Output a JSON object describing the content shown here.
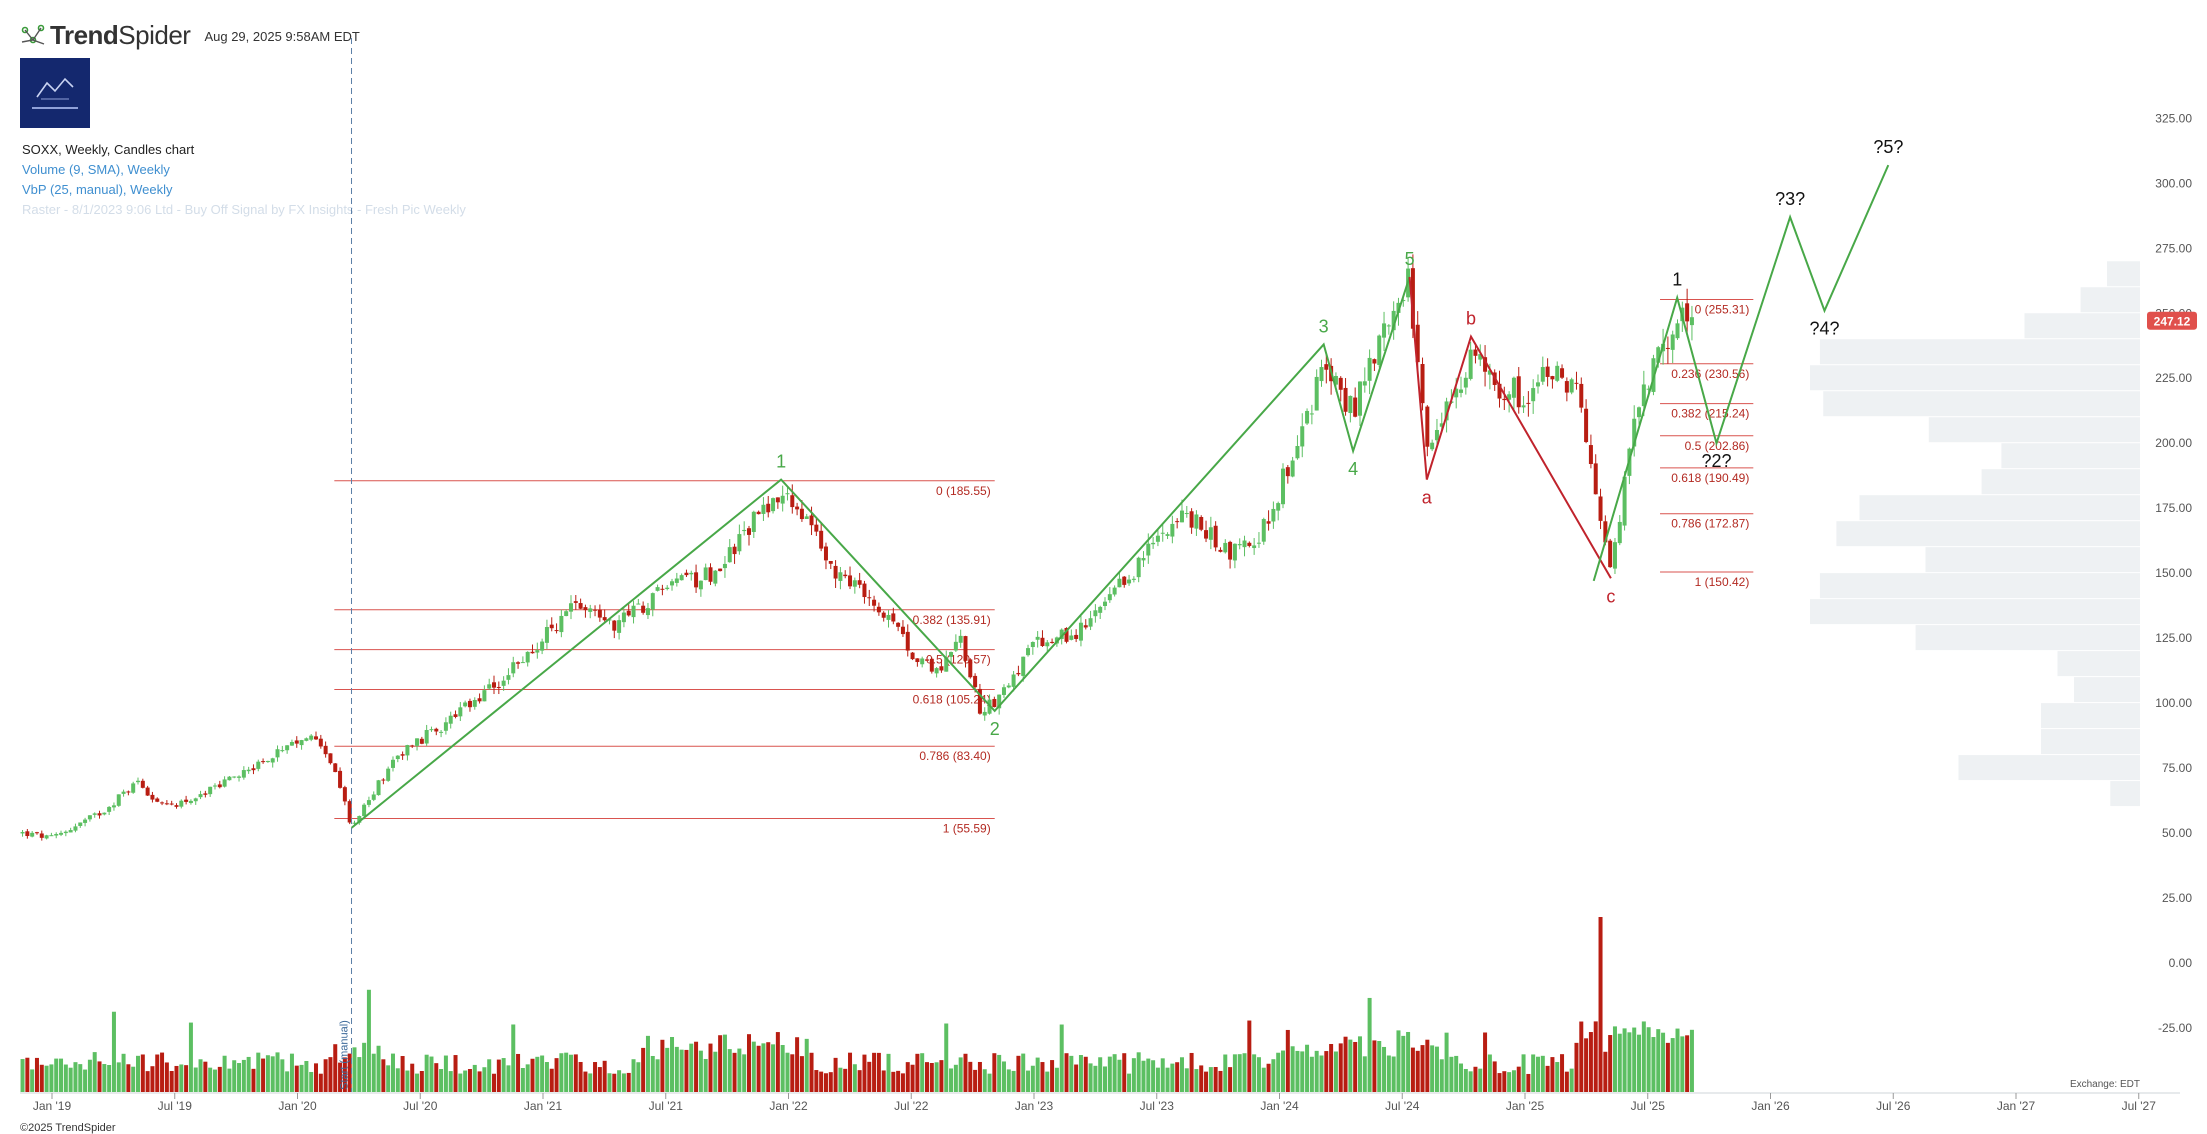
{
  "header": {
    "brand_bold": "Trend",
    "brand_light": "Spider",
    "timestamp": "Aug 29, 2025 9:58AM EDT"
  },
  "legend": {
    "main": "SOXX, Weekly, Candles chart",
    "volume": "Volume (9, SMA), Weekly",
    "vbp": "VbP (25, manual), Weekly",
    "faded": "Raster - 8/1/2023 9:06 Ltd - Buy Off Signal by FX Insights - Fresh Pic Weekly"
  },
  "copyright": "©2025 TrendSpider",
  "exchange": "Exchange: EDT",
  "colors": {
    "up": "#5cbf62",
    "down": "#b81d12",
    "wave": "#48a848",
    "abc": "#c0232c",
    "fib": "#d9534f",
    "vbp": "#eef1f3",
    "price_tag": "#e0504c"
  },
  "chart_data": {
    "type": "candlestick",
    "ylim": [
      -50,
      340
    ],
    "yticks": [
      -25,
      0,
      25,
      50,
      75,
      100,
      125,
      150,
      175,
      200,
      225,
      250,
      275,
      300,
      325
    ],
    "x_ticks": [
      {
        "label": "Jan '19",
        "t": 0.0
      },
      {
        "label": "Jul '19",
        "t": 0.5
      },
      {
        "label": "Jan '20",
        "t": 1.0
      },
      {
        "label": "Jul '20",
        "t": 1.5
      },
      {
        "label": "Jan '21",
        "t": 2.0
      },
      {
        "label": "Jul '21",
        "t": 2.5
      },
      {
        "label": "Jan '22",
        "t": 3.0
      },
      {
        "label": "Jul '22",
        "t": 3.5
      },
      {
        "label": "Jan '23",
        "t": 4.0
      },
      {
        "label": "Jul '23",
        "t": 4.5
      },
      {
        "label": "Jan '24",
        "t": 5.0
      },
      {
        "label": "Jul '24",
        "t": 5.5
      },
      {
        "label": "Jan '25",
        "t": 6.0
      },
      {
        "label": "Jul '25",
        "t": 6.5
      },
      {
        "label": "Jan '26",
        "t": 7.0
      },
      {
        "label": "Jul '26",
        "t": 7.5
      },
      {
        "label": "Jan '27",
        "t": 8.0
      },
      {
        "label": "Jul '27",
        "t": 8.5
      }
    ],
    "last_price": "247.12",
    "price_path": [
      [
        -0.12,
        50
      ],
      [
        0.0,
        48
      ],
      [
        0.2,
        58
      ],
      [
        0.35,
        70
      ],
      [
        0.45,
        60
      ],
      [
        0.6,
        64
      ],
      [
        0.8,
        75
      ],
      [
        1.0,
        84
      ],
      [
        1.08,
        88
      ],
      [
        1.15,
        75
      ],
      [
        1.22,
        52
      ],
      [
        1.4,
        80
      ],
      [
        1.6,
        92
      ],
      [
        1.8,
        106
      ],
      [
        2.0,
        125
      ],
      [
        2.15,
        140
      ],
      [
        2.3,
        130
      ],
      [
        2.5,
        145
      ],
      [
        2.7,
        150
      ],
      [
        2.85,
        170
      ],
      [
        2.97,
        183
      ],
      [
        3.05,
        172
      ],
      [
        3.2,
        150
      ],
      [
        3.35,
        138
      ],
      [
        3.5,
        120
      ],
      [
        3.6,
        112
      ],
      [
        3.7,
        125
      ],
      [
        3.78,
        98
      ],
      [
        3.84,
        101
      ],
      [
        4.0,
        122
      ],
      [
        4.2,
        128
      ],
      [
        4.4,
        150
      ],
      [
        4.55,
        170
      ],
      [
        4.62,
        172
      ],
      [
        4.8,
        158
      ],
      [
        4.95,
        168
      ],
      [
        5.1,
        210
      ],
      [
        5.18,
        227
      ],
      [
        5.3,
        212
      ],
      [
        5.4,
        240
      ],
      [
        5.53,
        262
      ],
      [
        5.6,
        195
      ],
      [
        5.7,
        216
      ],
      [
        5.78,
        236
      ],
      [
        5.9,
        222
      ],
      [
        6.0,
        218
      ],
      [
        6.1,
        230
      ],
      [
        6.22,
        218
      ],
      [
        6.3,
        170
      ],
      [
        6.35,
        152
      ],
      [
        6.45,
        212
      ],
      [
        6.55,
        238
      ],
      [
        6.62,
        248
      ],
      [
        6.68,
        247
      ]
    ],
    "candle_count": 348,
    "vbp_profile": [
      {
        "low": 60,
        "high": 70,
        "value": 0.09
      },
      {
        "low": 70,
        "high": 80,
        "value": 0.55
      },
      {
        "low": 80,
        "high": 90,
        "value": 0.3
      },
      {
        "low": 90,
        "high": 100,
        "value": 0.3
      },
      {
        "low": 100,
        "high": 110,
        "value": 0.2
      },
      {
        "low": 110,
        "high": 120,
        "value": 0.25
      },
      {
        "low": 120,
        "high": 130,
        "value": 0.68
      },
      {
        "low": 130,
        "high": 140,
        "value": 1.0
      },
      {
        "low": 140,
        "high": 150,
        "value": 0.97
      },
      {
        "low": 150,
        "high": 160,
        "value": 0.65
      },
      {
        "low": 160,
        "high": 170,
        "value": 0.92
      },
      {
        "low": 170,
        "high": 180,
        "value": 0.85
      },
      {
        "low": 180,
        "high": 190,
        "value": 0.48
      },
      {
        "low": 190,
        "high": 200,
        "value": 0.42
      },
      {
        "low": 200,
        "high": 210,
        "value": 0.64
      },
      {
        "low": 210,
        "high": 220,
        "value": 0.96
      },
      {
        "low": 220,
        "high": 230,
        "value": 1.0
      },
      {
        "low": 230,
        "high": 240,
        "value": 0.97
      },
      {
        "low": 240,
        "high": 250,
        "value": 0.35
      },
      {
        "low": 250,
        "high": 260,
        "value": 0.18
      },
      {
        "low": 260,
        "high": 270,
        "value": 0.1
      }
    ],
    "fib_sets": [
      {
        "t_start": 1.15,
        "t_end": 3.84,
        "levels": [
          {
            "label": "0 (185.55)",
            "value": 185.55
          },
          {
            "label": "0.382 (135.91)",
            "value": 135.91
          },
          {
            "label": "0.5 (120.57)",
            "value": 120.57
          },
          {
            "label": "0.618 (105.24)",
            "value": 105.24
          },
          {
            "label": "0.786 (83.40)",
            "value": 83.4
          },
          {
            "label": "1 (55.59)",
            "value": 55.59
          }
        ]
      },
      {
        "t_start": 6.55,
        "t_end": 6.93,
        "levels": [
          {
            "label": "0 (255.31)",
            "value": 255.31
          },
          {
            "label": "0.236 (230.56)",
            "value": 230.56
          },
          {
            "label": "0.382 (215.24)",
            "value": 215.24
          },
          {
            "label": "0.5 (202.86)",
            "value": 202.86
          },
          {
            "label": "0.618 (190.49)",
            "value": 190.49
          },
          {
            "label": "0.786 (172.87)",
            "value": 172.87
          },
          {
            "label": "1 (150.42)",
            "value": 150.42
          }
        ]
      }
    ],
    "wave_green": [
      {
        "t": 1.22,
        "v": 52,
        "label": ""
      },
      {
        "t": 2.97,
        "v": 186,
        "label": "1"
      },
      {
        "t": 3.84,
        "v": 97,
        "label": "2"
      },
      {
        "t": 5.18,
        "v": 238,
        "label": "3"
      },
      {
        "t": 5.3,
        "v": 197,
        "label": "4"
      },
      {
        "t": 5.53,
        "v": 264,
        "label": "5"
      }
    ],
    "wave_abc": [
      {
        "t": 5.53,
        "v": 264,
        "label": ""
      },
      {
        "t": 5.6,
        "v": 186,
        "label": "a"
      },
      {
        "t": 5.78,
        "v": 241,
        "label": "b"
      },
      {
        "t": 6.35,
        "v": 148,
        "label": "c"
      }
    ],
    "wave_projection": [
      {
        "t": 6.28,
        "v": 147,
        "label": ""
      },
      {
        "t": 6.62,
        "v": 256,
        "label": "1"
      },
      {
        "t": 6.78,
        "v": 200,
        "label": "?2?"
      },
      {
        "t": 7.08,
        "v": 287,
        "label": "?3?"
      },
      {
        "t": 7.22,
        "v": 251,
        "label": "?4?"
      },
      {
        "t": 7.48,
        "v": 307,
        "label": "?5?"
      }
    ],
    "marker": {
      "t": 1.22,
      "label": "Start (manual)"
    }
  }
}
